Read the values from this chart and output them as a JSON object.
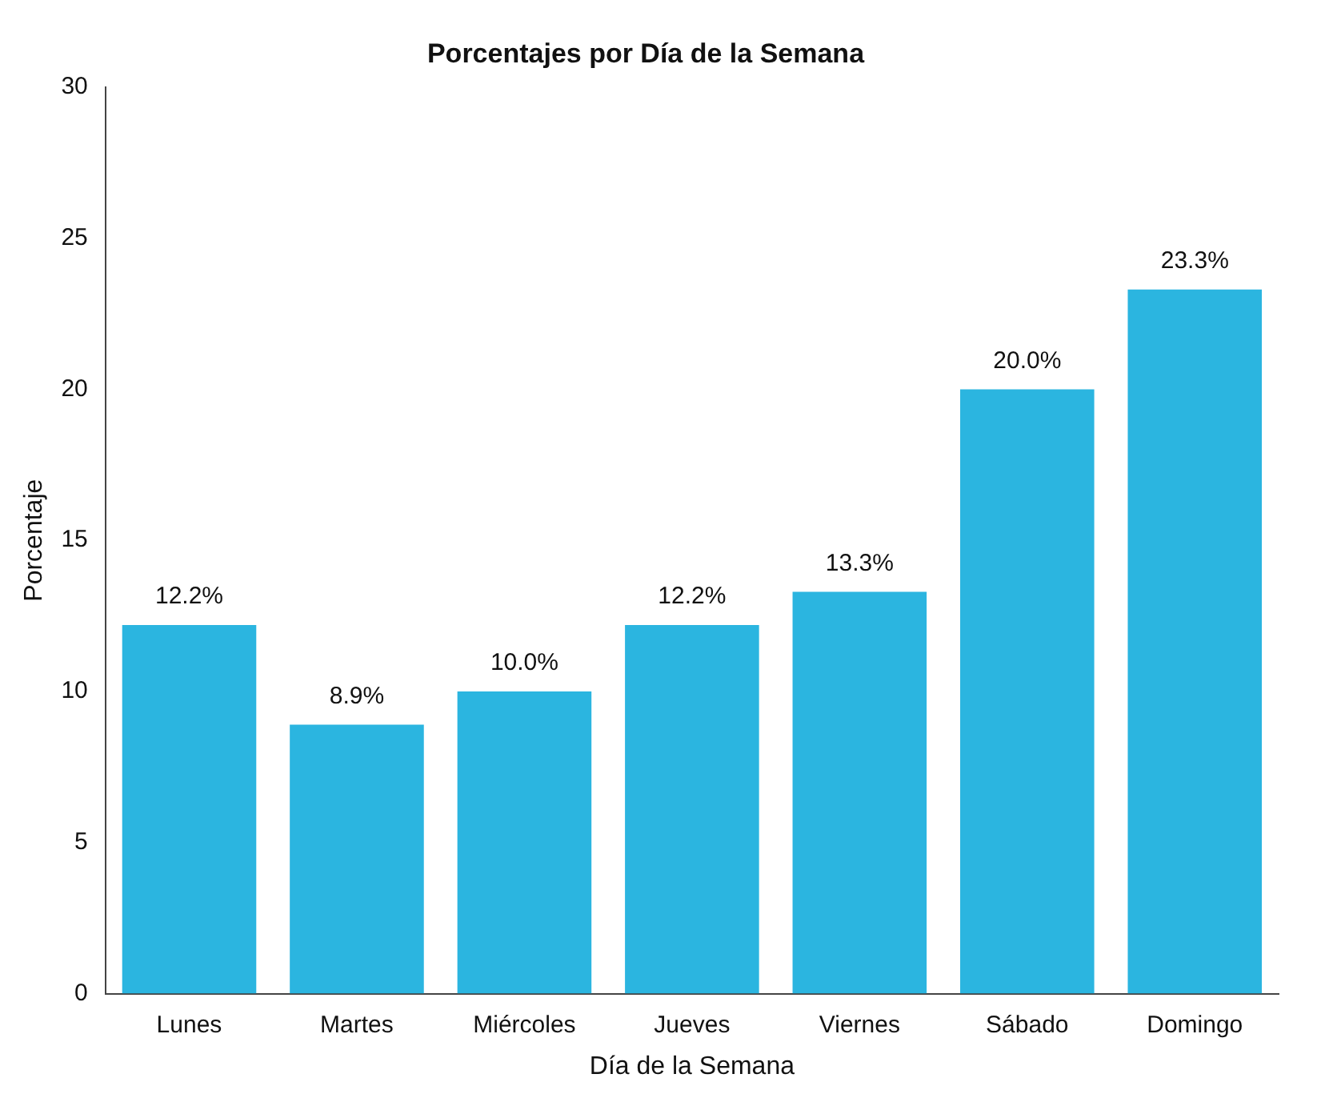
{
  "chart_data": {
    "type": "bar",
    "title": "Porcentajes por Día de la Semana",
    "xlabel": "Día de la Semana",
    "ylabel": "Porcentaje",
    "categories": [
      "Lunes",
      "Martes",
      "Miércoles",
      "Jueves",
      "Viernes",
      "Sábado",
      "Domingo"
    ],
    "values": [
      12.2,
      8.9,
      10.0,
      12.2,
      13.3,
      20.0,
      23.3
    ],
    "value_labels": [
      "12.2%",
      "8.9%",
      "10.0%",
      "12.2%",
      "13.3%",
      "20.0%",
      "23.3%"
    ],
    "color": "#2bb5e0",
    "ylim": [
      0,
      30
    ],
    "yticks": [
      0,
      5,
      10,
      15,
      20,
      25,
      30
    ],
    "grid": false,
    "legend": false
  }
}
